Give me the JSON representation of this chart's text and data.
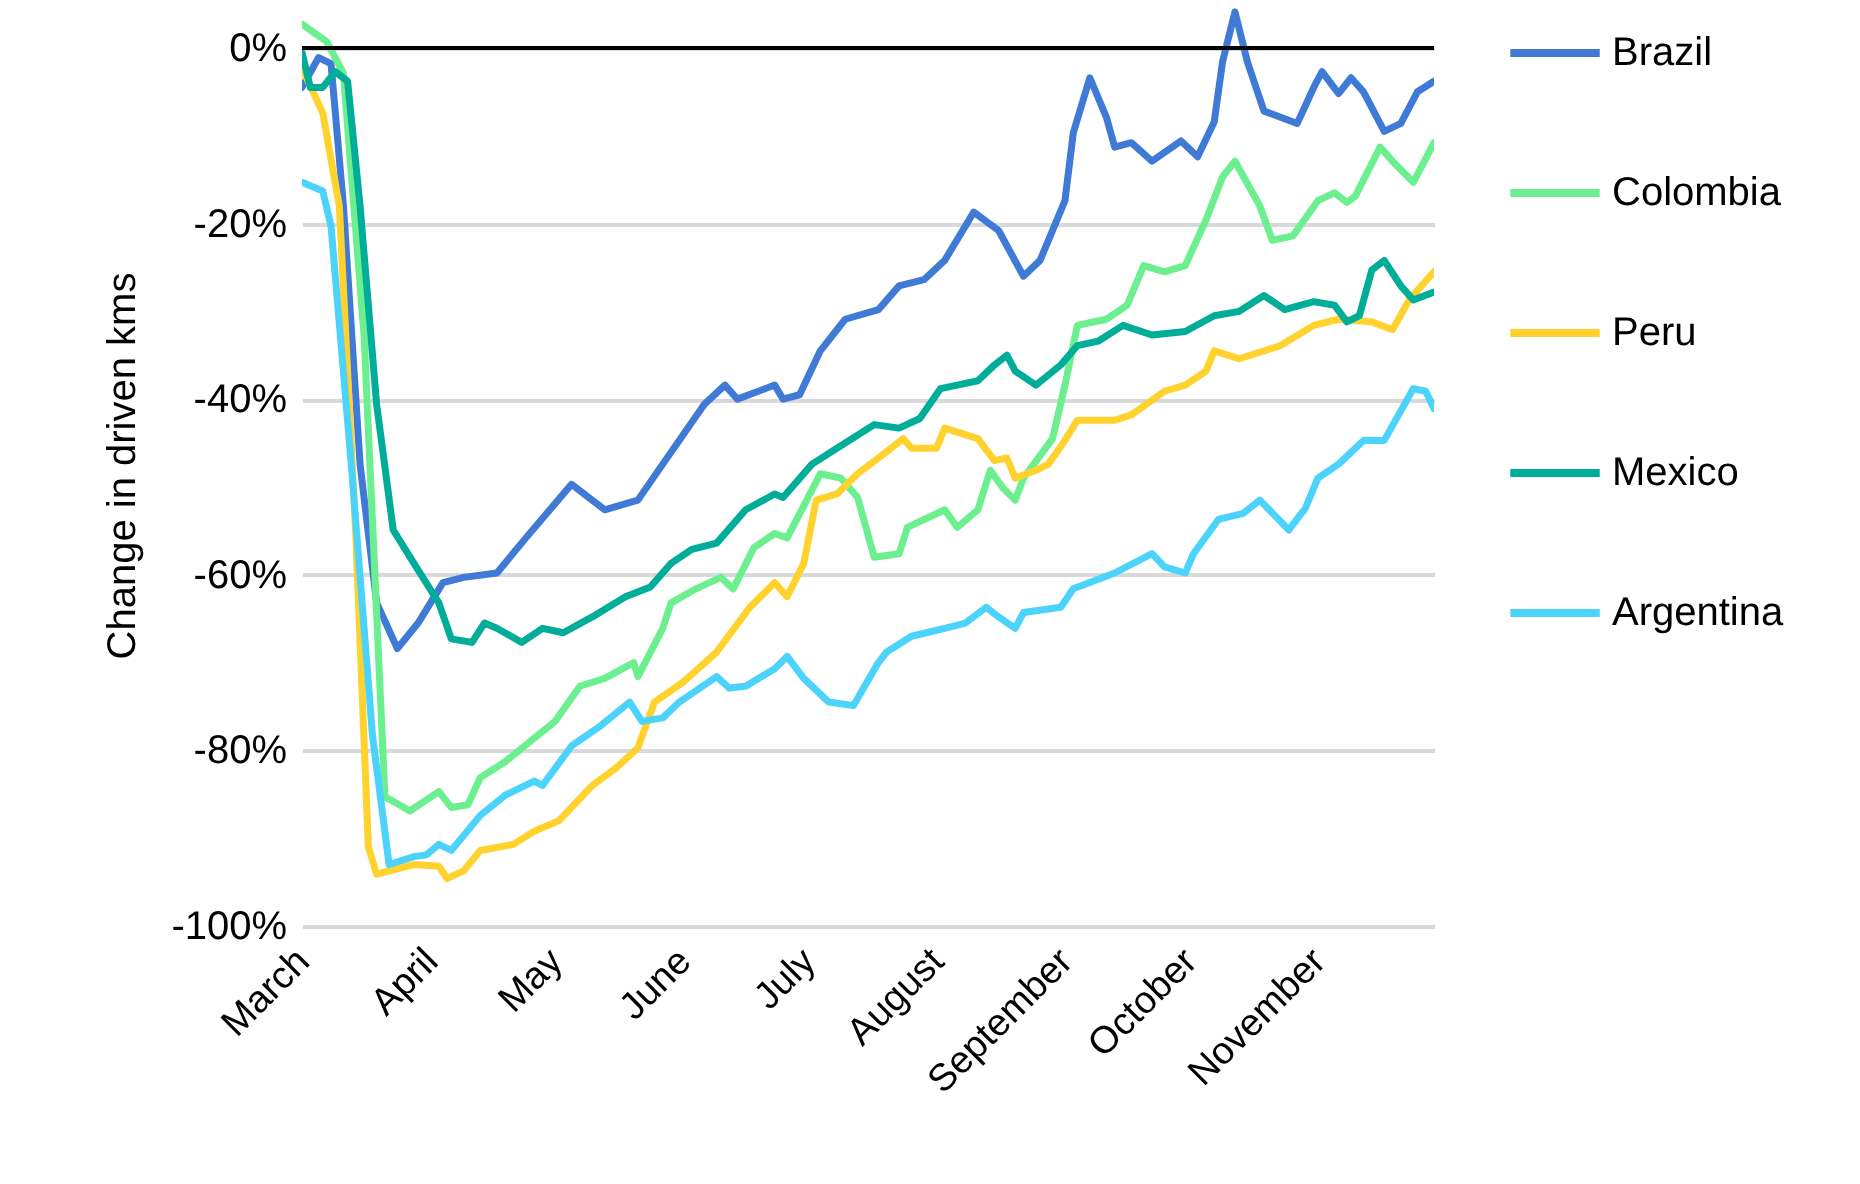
{
  "chart_data": {
    "type": "line",
    "ylabel": "Change in driven kms",
    "xlim": [
      "--03-01",
      "--11-29"
    ],
    "ylim": [
      -100,
      5
    ],
    "xticks": [
      {
        "value": "--03-01",
        "label": "March"
      },
      {
        "value": "--04-01",
        "label": "April"
      },
      {
        "value": "--05-01",
        "label": "May"
      },
      {
        "value": "--06-01",
        "label": "June"
      },
      {
        "value": "--07-01",
        "label": "July"
      },
      {
        "value": "--08-01",
        "label": "August"
      },
      {
        "value": "--09-01",
        "label": "September"
      },
      {
        "value": "--10-01",
        "label": "October"
      },
      {
        "value": "--11-01",
        "label": "November"
      }
    ],
    "yticks": [
      {
        "value": 0,
        "label": "0%"
      },
      {
        "value": -20,
        "label": "-20%"
      },
      {
        "value": -40,
        "label": "-40%"
      },
      {
        "value": -60,
        "label": "-60%"
      },
      {
        "value": -80,
        "label": "-80%"
      },
      {
        "value": -100,
        "label": "-100%"
      }
    ],
    "grid": "y",
    "legend": "right",
    "line_style": "solid",
    "marker": "none",
    "ref_lines": [
      {
        "axis": "y",
        "value": 0,
        "color": "#000000"
      }
    ],
    "series": [
      {
        "name": "Brazil",
        "color": "#3f7ad6",
        "x": [
          "--03-01",
          "--03-05",
          "--03-08",
          "--03-11",
          "--03-15",
          "--03-19",
          "--03-24",
          "--03-29",
          "--04-04",
          "--04-09",
          "--04-17",
          "--04-24",
          "--05-05",
          "--05-13",
          "--05-21",
          "--05-27",
          "--06-06",
          "--06-11",
          "--06-14",
          "--06-23",
          "--06-25",
          "--06-29",
          "--07-04",
          "--07-10",
          "--07-18",
          "--07-23",
          "--07-29",
          "--08-03",
          "--08-10",
          "--08-16",
          "--08-22",
          "--08-26",
          "--09-01",
          "--09-03",
          "--09-07",
          "--09-11",
          "--09-13",
          "--09-17",
          "--09-22",
          "--09-29",
          "--10-03",
          "--10-07",
          "--10-09",
          "--10-12",
          "--10-15",
          "--10-19",
          "--10-27",
          "--10-31",
          "--11-02",
          "--11-06",
          "--11-09",
          "--11-12",
          "--11-17",
          "--11-21",
          "--11-25",
          "--11-29"
        ],
        "values": [
          -4.5,
          -1.1,
          -1.8,
          -18,
          -47.4,
          -63.2,
          -68.4,
          -65.5,
          -60.9,
          -60.3,
          -59.8,
          -55.8,
          -49.7,
          -52.6,
          -51.5,
          -47.4,
          -40.6,
          -38.4,
          -40,
          -38.4,
          -40,
          -39.5,
          -34.5,
          -30.9,
          -29.8,
          -27.1,
          -26.4,
          -24.2,
          -18.7,
          -20.8,
          -26,
          -24.2,
          -17.4,
          -9.7,
          -3.4,
          -7.9,
          -11.3,
          -10.8,
          -12.9,
          -10.6,
          -12.4,
          -8.4,
          -1.6,
          4.1,
          -1.6,
          -7.2,
          -8.6,
          -4.5,
          -2.7,
          -5.2,
          -3.4,
          -5,
          -9.5,
          -8.6,
          -5,
          -3.8
        ]
      },
      {
        "name": "Colombia",
        "color": "#6cef8f",
        "x": [
          "--03-01",
          "--03-07",
          "--03-11",
          "--03-16",
          "--03-21",
          "--03-23",
          "--03-27",
          "--04-03",
          "--04-06",
          "--04-10",
          "--04-13",
          "--04-19",
          "--04-26",
          "--05-01",
          "--05-07",
          "--05-13",
          "--05-20",
          "--05-21",
          "--05-27",
          "--05-29",
          "--06-04",
          "--06-10",
          "--06-13",
          "--06-18",
          "--06-23",
          "--06-26",
          "--07-04",
          "--07-09",
          "--07-13",
          "--07-17",
          "--07-23",
          "--07-25",
          "--08-03",
          "--08-06",
          "--08-11",
          "--08-14",
          "--08-17",
          "--08-20",
          "--08-22",
          "--08-29",
          "--09-01",
          "--09-04",
          "--09-11",
          "--09-16",
          "--09-20",
          "--09-25",
          "--09-30",
          "--10-05",
          "--10-09",
          "--10-12",
          "--10-18",
          "--10-21",
          "--10-26",
          "--11-01",
          "--11-05",
          "--11-08",
          "--11-10",
          "--11-16",
          "--11-19",
          "--11-24",
          "--11-29"
        ],
        "values": [
          2.7,
          0.7,
          -2.9,
          -33,
          -85.3,
          -85.8,
          -86.9,
          -84.7,
          -86.5,
          -86.2,
          -83.1,
          -81.3,
          -78.6,
          -76.7,
          -72.7,
          -71.8,
          -70,
          -71.6,
          -66.1,
          -63.2,
          -61.6,
          -60.3,
          -61.6,
          -56.9,
          -55.3,
          -55.8,
          -48.5,
          -49,
          -51.2,
          -58,
          -57.6,
          -54.6,
          -52.6,
          -54.6,
          -52.6,
          -48.1,
          -50.1,
          -51.5,
          -49,
          -44.5,
          -38.4,
          -31.6,
          -30.9,
          -29.3,
          -24.8,
          -25.5,
          -24.8,
          -19.6,
          -14.7,
          -12.9,
          -18,
          -21.9,
          -21.4,
          -17.4,
          -16.5,
          -17.6,
          -16.9,
          -11.3,
          -12.9,
          -15.3,
          -10.8
        ]
      },
      {
        "name": "Peru",
        "color": "#ffd22e",
        "x": [
          "--03-01",
          "--03-06",
          "--03-10",
          "--03-14",
          "--03-17",
          "--03-19",
          "--03-28",
          "--04-03",
          "--04-05",
          "--04-09",
          "--04-13",
          "--04-21",
          "--04-26",
          "--05-02",
          "--05-10",
          "--05-16",
          "--05-21",
          "--05-25",
          "--06-01",
          "--06-09",
          "--06-17",
          "--06-23",
          "--06-26",
          "--06-30",
          "--07-03",
          "--07-08",
          "--07-13",
          "--07-18",
          "--07-24",
          "--07-26",
          "--08-01",
          "--08-03",
          "--08-11",
          "--08-15",
          "--08-18",
          "--08-20",
          "--08-25",
          "--08-28",
          "--09-01",
          "--09-04",
          "--09-13",
          "--09-17",
          "--09-25",
          "--09-30",
          "--10-05",
          "--10-07",
          "--10-13",
          "--10-23",
          "--10-31",
          "--11-06",
          "--11-14",
          "--11-19",
          "--11-23",
          "--11-29"
        ],
        "values": [
          -2.3,
          -7.4,
          -18,
          -55.8,
          -91,
          -94.1,
          -93,
          -93.2,
          -94.6,
          -93.7,
          -91.4,
          -90.7,
          -89.2,
          -88,
          -84,
          -81.9,
          -79.7,
          -74.5,
          -72.2,
          -68.8,
          -63.7,
          -60.9,
          -62.5,
          -58.7,
          -51.5,
          -50.8,
          -48.5,
          -46.7,
          -44.5,
          -45.6,
          -45.6,
          -43.3,
          -44.5,
          -47,
          -46.7,
          -49,
          -48.1,
          -47.4,
          -44.7,
          -42.4,
          -42.4,
          -41.8,
          -39.1,
          -38.4,
          -36.8,
          -34.5,
          -35.4,
          -33.9,
          -31.6,
          -30.9,
          -31.2,
          -32.1,
          -28.7,
          -25.5
        ]
      },
      {
        "name": "Mexico",
        "color": "#00ad99",
        "x": [
          "--03-01",
          "--03-03",
          "--03-06",
          "--03-09",
          "--03-12",
          "--03-15",
          "--03-19",
          "--03-23",
          "--03-28",
          "--04-03",
          "--04-06",
          "--04-11",
          "--04-14",
          "--04-17",
          "--04-23",
          "--04-28",
          "--05-03",
          "--05-10",
          "--05-18",
          "--05-24",
          "--05-29",
          "--06-03",
          "--06-09",
          "--06-16",
          "--06-23",
          "--06-25",
          "--07-02",
          "--07-08",
          "--07-17",
          "--07-23",
          "--07-28",
          "--08-02",
          "--08-06",
          "--08-11",
          "--08-15",
          "--08-18",
          "--08-20",
          "--08-25",
          "--08-31",
          "--09-04",
          "--09-09",
          "--09-15",
          "--09-22",
          "--09-30",
          "--10-07",
          "--10-13",
          "--10-19",
          "--10-24",
          "--10-31",
          "--11-05",
          "--11-08",
          "--11-11",
          "--11-14",
          "--11-17",
          "--11-21",
          "--11-24",
          "--11-29"
        ],
        "values": [
          -0.5,
          -4.5,
          -4.5,
          -2.7,
          -3.8,
          -18,
          -40.6,
          -54.9,
          -58.7,
          -63.2,
          -67.3,
          -67.7,
          -65.5,
          -66.1,
          -67.7,
          -66.1,
          -66.6,
          -64.8,
          -62.5,
          -61.4,
          -58.7,
          -57.1,
          -56.4,
          -52.6,
          -50.8,
          -51.2,
          -47.4,
          -45.6,
          -42.9,
          -43.3,
          -42.2,
          -38.8,
          -38.4,
          -37.9,
          -36.1,
          -35,
          -36.8,
          -38.4,
          -36.1,
          -33.9,
          -33.4,
          -31.6,
          -32.7,
          -32.3,
          -30.5,
          -30,
          -28.2,
          -29.8,
          -28.9,
          -29.3,
          -31.2,
          -30.5,
          -25.3,
          -24.2,
          -27.1,
          -28.7,
          -27.8
        ]
      },
      {
        "name": "Argentina",
        "color": "#4cd3fb",
        "x": [
          "--03-01",
          "--03-06",
          "--03-08",
          "--03-13",
          "--03-18",
          "--03-22",
          "--03-28",
          "--03-31",
          "--04-03",
          "--04-06",
          "--04-13",
          "--04-19",
          "--04-26",
          "--04-28",
          "--05-05",
          "--05-12",
          "--05-19",
          "--05-22",
          "--05-27",
          "--05-31",
          "--06-09",
          "--06-12",
          "--06-16",
          "--06-23",
          "--06-26",
          "--06-30",
          "--07-06",
          "--07-12",
          "--07-18",
          "--07-20",
          "--07-26",
          "--08-03",
          "--08-08",
          "--08-13",
          "--08-16",
          "--08-20",
          "--08-22",
          "--08-31",
          "--09-03",
          "--09-13",
          "--09-22",
          "--09-25",
          "--09-30",
          "--10-02",
          "--10-08",
          "--10-14",
          "--10-18",
          "--10-25",
          "--10-29",
          "--11-01",
          "--11-06",
          "--11-12",
          "--11-17",
          "--11-24",
          "--11-27",
          "--11-29"
        ],
        "values": [
          -15.3,
          -16.3,
          -20.3,
          -48.1,
          -78.3,
          -93,
          -92.1,
          -91.9,
          -90.7,
          -91.4,
          -87.4,
          -85.1,
          -83.5,
          -84,
          -79.5,
          -77.2,
          -74.5,
          -76.7,
          -76.3,
          -74.5,
          -71.6,
          -72.9,
          -72.7,
          -70.7,
          -69.3,
          -71.8,
          -74.5,
          -74.9,
          -70,
          -68.8,
          -67,
          -66.1,
          -65.5,
          -63.7,
          -64.8,
          -66.1,
          -64.3,
          -63.7,
          -61.6,
          -59.8,
          -57.6,
          -59.1,
          -59.8,
          -57.6,
          -53.7,
          -53,
          -51.5,
          -54.9,
          -52.4,
          -49,
          -47.4,
          -44.7,
          -44.7,
          -38.8,
          -39.1,
          -41.1
        ]
      }
    ]
  }
}
